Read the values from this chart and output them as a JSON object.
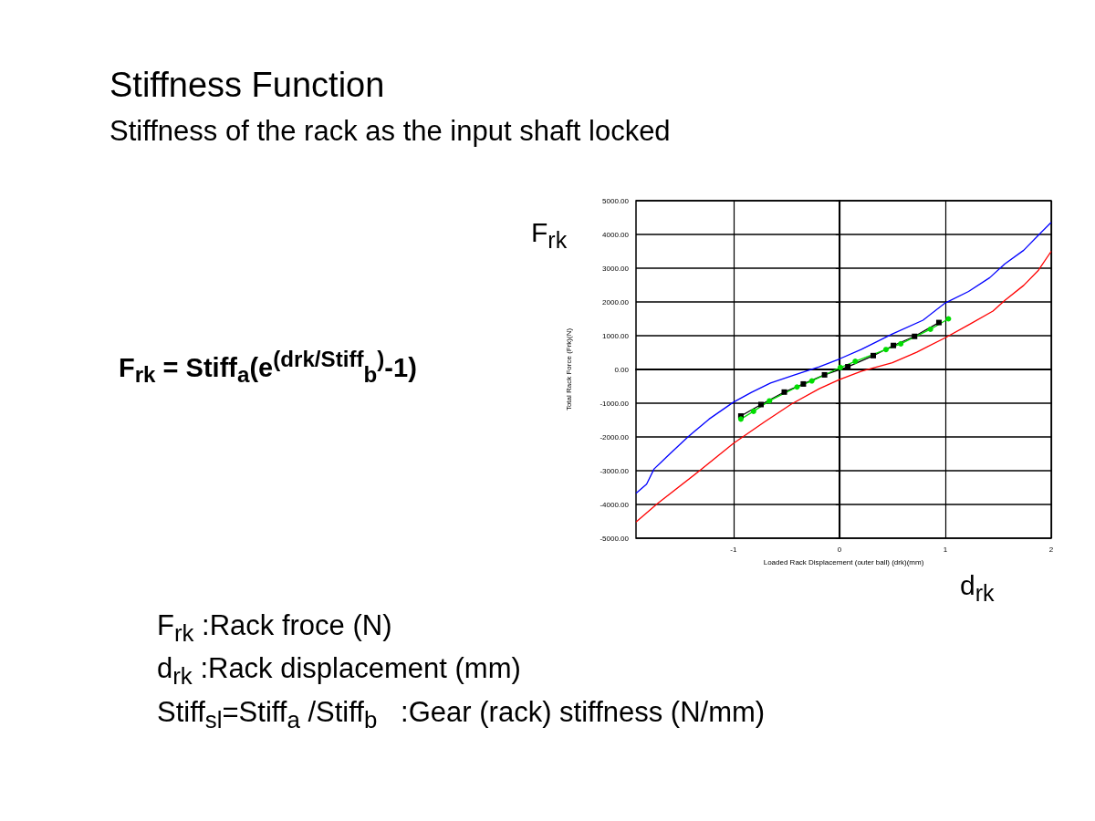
{
  "chart_data": {
    "type": "line",
    "title": "Stiffness Function",
    "subtitle": "Stiffness of the rack as the input shaft locked",
    "xlabel": "Loaded Rack Displacement (outer ball) (drk)(mm)",
    "ylabel": "Total Rack Force (Frk)(N)",
    "series": [
      {
        "color": "#0000ff",
        "marker": "none",
        "x": [
          -1.92,
          -1.82,
          -1.75,
          -1.6,
          -1.43,
          -1.23,
          -1.0,
          -0.83,
          -0.65,
          -0.42,
          -0.19,
          0,
          0.21,
          0.5,
          0.79,
          1.0,
          1.22,
          1.42,
          1.56,
          1.74,
          1.88,
          2.0
        ],
        "values": [
          -3670,
          -3400,
          -2950,
          -2500,
          -2000,
          -1470,
          -970,
          -680,
          -400,
          -160,
          80,
          310,
          600,
          1050,
          1460,
          1970,
          2310,
          2720,
          3120,
          3530,
          3980,
          4360
        ]
      },
      {
        "color": "#ff0000",
        "marker": "none",
        "x": [
          -1.92,
          -1.72,
          -1.32,
          -1.0,
          -0.71,
          -0.45,
          -0.19,
          0,
          0.21,
          0.5,
          0.73,
          1.0,
          1.22,
          1.45,
          1.56,
          1.74,
          1.88,
          2.0
        ],
        "values": [
          -4520,
          -3980,
          -3000,
          -2190,
          -1560,
          -1020,
          -570,
          -300,
          -50,
          200,
          510,
          940,
          1320,
          1730,
          2040,
          2490,
          2940,
          3500
        ]
      },
      {
        "color": "#000000",
        "marker": "square",
        "x": [
          -0.93,
          -0.74,
          -0.52,
          -0.34,
          -0.14,
          0.08,
          0.32,
          0.51,
          0.71,
          0.94
        ],
        "values": [
          -1380,
          -1040,
          -670,
          -430,
          -160,
          80,
          410,
          710,
          980,
          1390
        ]
      },
      {
        "color": "#00dd00",
        "marker": "circle",
        "x": [
          -0.93,
          -0.81,
          -0.66,
          -0.4,
          -0.26,
          0.01,
          0.15,
          0.44,
          0.58,
          0.86,
          1.03
        ],
        "values": [
          -1470,
          -1240,
          -930,
          -520,
          -340,
          60,
          240,
          590,
          760,
          1190,
          1500
        ]
      }
    ],
    "xlim": [
      -1.92,
      2
    ],
    "xticks": [
      -1,
      0,
      1,
      2
    ],
    "ylim": [
      -5000,
      5000
    ],
    "yticks": [
      {
        "value": -5000,
        "label": "-5000.00"
      },
      {
        "value": -4000,
        "label": "-4000.00"
      },
      {
        "value": -3000,
        "label": "-3000.00"
      },
      {
        "value": -2000,
        "label": "-2000.00"
      },
      {
        "value": -1000,
        "label": "-1000.00"
      },
      {
        "value": 0,
        "label": "0.00"
      },
      {
        "value": 1000,
        "label": "1000.00"
      },
      {
        "value": 2000,
        "label": "2000.00"
      },
      {
        "value": 3000,
        "label": "3000.00"
      },
      {
        "value": 4000,
        "label": "4000.00"
      },
      {
        "value": 5000,
        "label": "5000.00"
      }
    ],
    "grid": true,
    "line_style": "solid",
    "annotations": [
      "F$_{rk}$ = Stiff$_{a}$(e$^{(drk/Stiff}$$_{b}$$^{)}$-1)",
      "F$_{rk}$",
      "d$_{rk}$",
      "F$_{rk}$ :Rack froce (N)",
      "d$_{rk}$ :Rack displacement (mm)",
      "Stiff$_{sl}$=Stiff$_{a}$ /Stiff$_{b}$   :Gear (rack) stiffness (N/mm)"
    ]
  }
}
